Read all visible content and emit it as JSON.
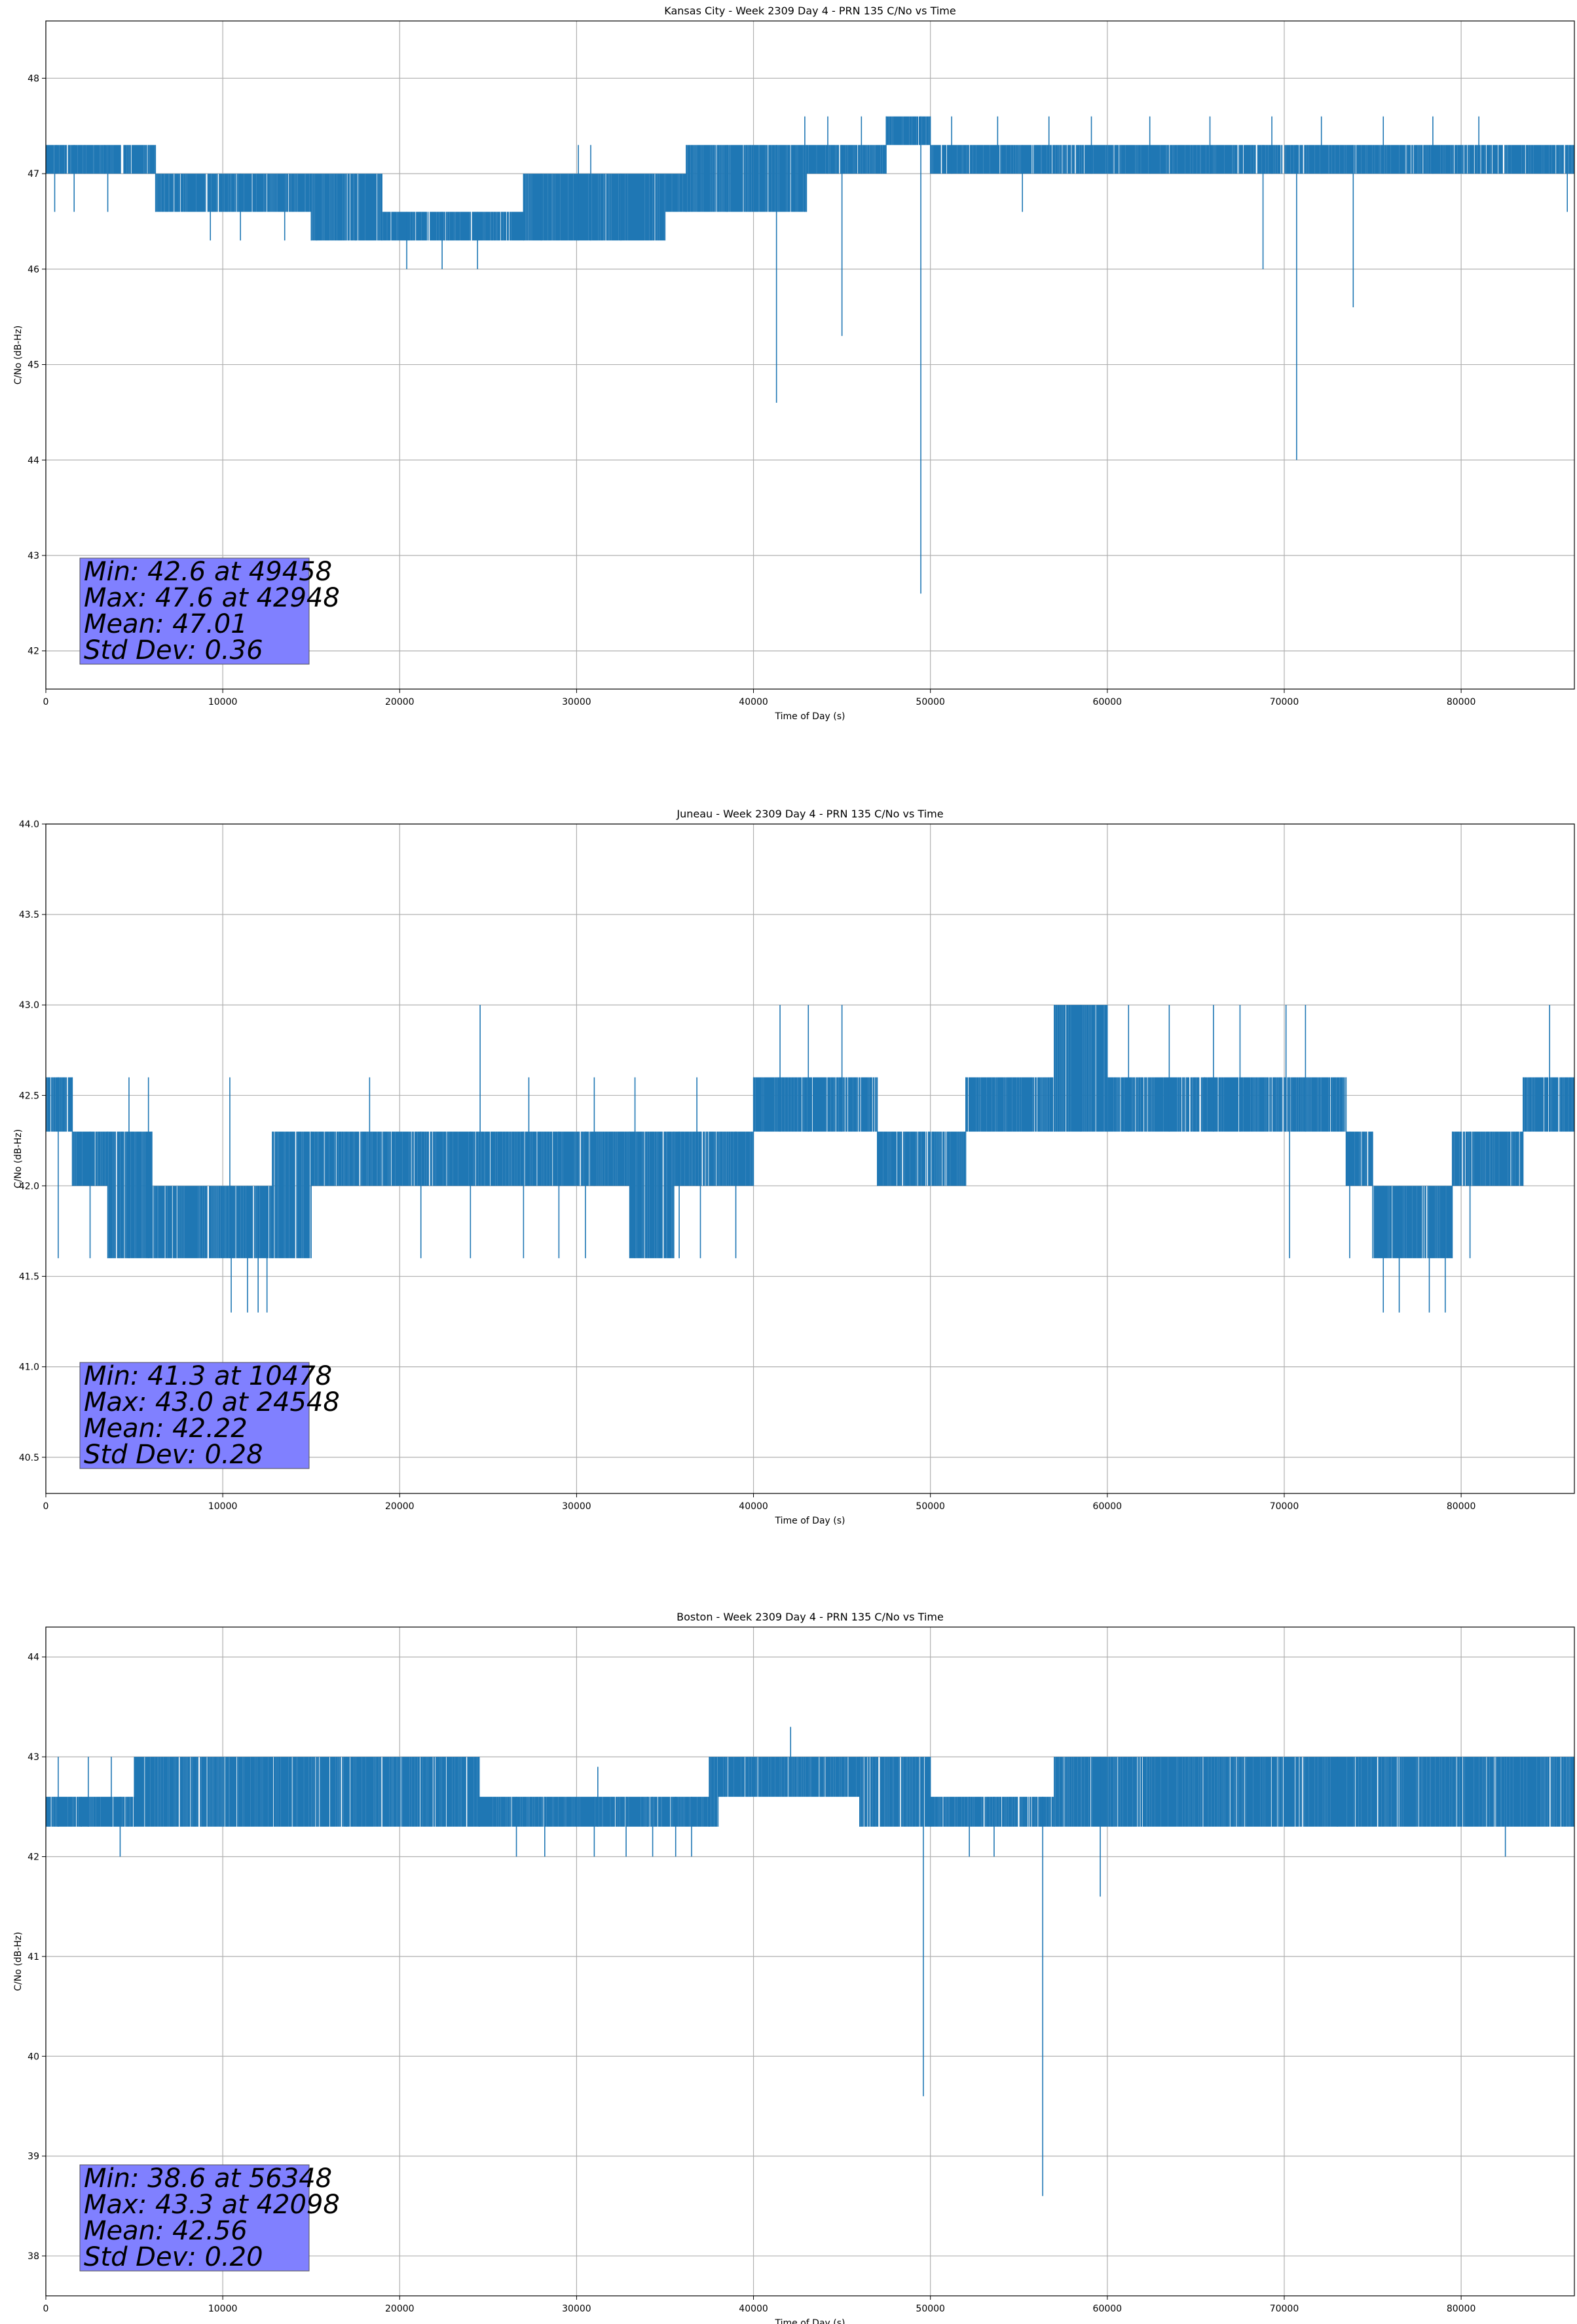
{
  "chart_data": [
    {
      "type": "line",
      "title": "Kansas City - Week 2309 Day 4 - PRN 135 C/No vs Time",
      "xlabel": "Time of Day (s)",
      "ylabel": "C/No (dB-Hz)",
      "xlim": [
        0,
        86400
      ],
      "ylim": [
        41.6,
        48.6
      ],
      "xticks": [
        0,
        10000,
        20000,
        30000,
        40000,
        50000,
        60000,
        70000,
        80000
      ],
      "xtick_labels": [
        "0",
        "10000",
        "20000",
        "30000",
        "40000",
        "50000",
        "60000",
        "70000",
        "80000"
      ],
      "yticks": [
        42,
        43,
        44,
        45,
        46,
        47,
        48
      ],
      "ytick_labels": [
        "42",
        "43",
        "44",
        "45",
        "46",
        "47",
        "48"
      ],
      "grid": true,
      "color": "#1f77b4",
      "bands": [
        {
          "x0": 0,
          "x1": 6200,
          "lo": 47.0,
          "hi": 47.3
        },
        {
          "x0": 6200,
          "x1": 11000,
          "lo": 46.6,
          "hi": 47.0
        },
        {
          "x0": 11000,
          "x1": 15000,
          "lo": 46.6,
          "hi": 47.0
        },
        {
          "x0": 15000,
          "x1": 19000,
          "lo": 46.3,
          "hi": 47.0
        },
        {
          "x0": 19000,
          "x1": 27000,
          "lo": 46.3,
          "hi": 46.6
        },
        {
          "x0": 27000,
          "x1": 35000,
          "lo": 46.3,
          "hi": 47.0
        },
        {
          "x0": 35000,
          "x1": 36200,
          "lo": 46.6,
          "hi": 47.0
        },
        {
          "x0": 36200,
          "x1": 43000,
          "lo": 46.6,
          "hi": 47.3
        },
        {
          "x0": 43000,
          "x1": 47500,
          "lo": 47.0,
          "hi": 47.3
        },
        {
          "x0": 47500,
          "x1": 50000,
          "lo": 47.3,
          "hi": 47.6
        },
        {
          "x0": 50000,
          "x1": 82000,
          "lo": 47.0,
          "hi": 47.3
        },
        {
          "x0": 82000,
          "x1": 86400,
          "lo": 47.0,
          "hi": 47.3
        }
      ],
      "upper_spikes": [
        [
          600,
          47.3
        ],
        [
          2200,
          47.3
        ],
        [
          3300,
          47.3
        ],
        [
          5800,
          47.3
        ],
        [
          9200,
          46.6
        ],
        [
          15300,
          46.6
        ],
        [
          30100,
          47.3
        ],
        [
          30800,
          47.3
        ],
        [
          38500,
          47.3
        ],
        [
          42900,
          47.6
        ],
        [
          44200,
          47.6
        ],
        [
          46100,
          47.6
        ],
        [
          51200,
          47.6
        ],
        [
          53800,
          47.6
        ],
        [
          56700,
          47.6
        ],
        [
          59100,
          47.6
        ],
        [
          62400,
          47.6
        ],
        [
          65800,
          47.6
        ],
        [
          69300,
          47.6
        ],
        [
          72100,
          47.6
        ],
        [
          75600,
          47.6
        ],
        [
          78400,
          47.6
        ],
        [
          81000,
          47.6
        ]
      ],
      "lower_spikes": [
        [
          500,
          46.6
        ],
        [
          1600,
          46.6
        ],
        [
          3500,
          46.6
        ],
        [
          9300,
          46.3
        ],
        [
          11000,
          46.3
        ],
        [
          13500,
          46.3
        ],
        [
          17500,
          46.3
        ],
        [
          20400,
          46.0
        ],
        [
          22400,
          46.0
        ],
        [
          24400,
          46.0
        ],
        [
          28000,
          46.3
        ],
        [
          32500,
          46.3
        ],
        [
          41300,
          44.6
        ],
        [
          45000,
          45.3
        ],
        [
          49458,
          42.6
        ],
        [
          55200,
          46.6
        ],
        [
          68800,
          46.0
        ],
        [
          70700,
          44.0
        ],
        [
          73900,
          45.6
        ],
        [
          86000,
          46.6
        ]
      ],
      "stats": [
        "Min: 42.6 at 49458",
        "Max: 47.6 at 42948",
        "Mean: 47.01",
        "Std Dev: 0.36"
      ]
    },
    {
      "type": "line",
      "title": "Juneau - Week 2309 Day 4 - PRN 135 C/No vs Time",
      "xlabel": "Time of Day (s)",
      "ylabel": "C/No (dB-Hz)",
      "xlim": [
        0,
        86400
      ],
      "ylim": [
        40.3,
        44.0
      ],
      "xticks": [
        0,
        10000,
        20000,
        30000,
        40000,
        50000,
        60000,
        70000,
        80000
      ],
      "xtick_labels": [
        "0",
        "10000",
        "20000",
        "30000",
        "40000",
        "50000",
        "60000",
        "70000",
        "80000"
      ],
      "yticks": [
        40.5,
        41.0,
        41.5,
        42.0,
        42.5,
        43.0,
        43.5,
        44.0
      ],
      "ytick_labels": [
        "40.5",
        "41.0",
        "41.5",
        "42.0",
        "42.5",
        "43.0",
        "43.5",
        "44.0"
      ],
      "grid": true,
      "color": "#1f77b4",
      "bands": [
        {
          "x0": 0,
          "x1": 1500,
          "lo": 42.3,
          "hi": 42.6
        },
        {
          "x0": 1500,
          "x1": 3500,
          "lo": 42.0,
          "hi": 42.3
        },
        {
          "x0": 3500,
          "x1": 6000,
          "lo": 41.6,
          "hi": 42.3
        },
        {
          "x0": 6000,
          "x1": 10000,
          "lo": 41.6,
          "hi": 42.0
        },
        {
          "x0": 10000,
          "x1": 12800,
          "lo": 41.6,
          "hi": 42.0
        },
        {
          "x0": 12800,
          "x1": 15000,
          "lo": 41.6,
          "hi": 42.3
        },
        {
          "x0": 15000,
          "x1": 33000,
          "lo": 42.0,
          "hi": 42.3
        },
        {
          "x0": 33000,
          "x1": 35500,
          "lo": 41.6,
          "hi": 42.3
        },
        {
          "x0": 35500,
          "x1": 40000,
          "lo": 42.0,
          "hi": 42.3
        },
        {
          "x0": 40000,
          "x1": 47000,
          "lo": 42.3,
          "hi": 42.6
        },
        {
          "x0": 47000,
          "x1": 52000,
          "lo": 42.0,
          "hi": 42.3
        },
        {
          "x0": 52000,
          "x1": 57000,
          "lo": 42.3,
          "hi": 42.6
        },
        {
          "x0": 57000,
          "x1": 60000,
          "lo": 42.3,
          "hi": 43.0
        },
        {
          "x0": 60000,
          "x1": 65500,
          "lo": 42.3,
          "hi": 42.6
        },
        {
          "x0": 65500,
          "x1": 73500,
          "lo": 42.3,
          "hi": 42.6
        },
        {
          "x0": 73500,
          "x1": 75000,
          "lo": 42.0,
          "hi": 42.3
        },
        {
          "x0": 75000,
          "x1": 79500,
          "lo": 41.6,
          "hi": 42.0
        },
        {
          "x0": 79500,
          "x1": 83500,
          "lo": 42.0,
          "hi": 42.3
        },
        {
          "x0": 83500,
          "x1": 86400,
          "lo": 42.3,
          "hi": 42.6
        }
      ],
      "upper_spikes": [
        [
          24548,
          43.0
        ],
        [
          41500,
          43.0
        ],
        [
          43100,
          43.0
        ],
        [
          45000,
          43.0
        ],
        [
          58500,
          43.0
        ],
        [
          61200,
          43.0
        ],
        [
          63500,
          43.0
        ],
        [
          66000,
          43.0
        ],
        [
          67500,
          43.0
        ],
        [
          70100,
          43.0
        ],
        [
          71200,
          43.0
        ],
        [
          85000,
          43.0
        ],
        [
          4700,
          42.6
        ],
        [
          5800,
          42.6
        ],
        [
          10400,
          42.6
        ],
        [
          18300,
          42.6
        ],
        [
          27300,
          42.6
        ],
        [
          31000,
          42.6
        ],
        [
          33300,
          42.6
        ],
        [
          36800,
          42.6
        ]
      ],
      "lower_spikes": [
        [
          10478,
          41.3
        ],
        [
          11400,
          41.3
        ],
        [
          12000,
          41.3
        ],
        [
          12500,
          41.3
        ],
        [
          75600,
          41.3
        ],
        [
          76500,
          41.3
        ],
        [
          78200,
          41.3
        ],
        [
          79100,
          41.3
        ],
        [
          700,
          41.6
        ],
        [
          2500,
          41.6
        ],
        [
          21200,
          41.6
        ],
        [
          24000,
          41.6
        ],
        [
          27000,
          41.6
        ],
        [
          29000,
          41.6
        ],
        [
          30500,
          41.6
        ],
        [
          35800,
          41.6
        ],
        [
          37000,
          41.6
        ],
        [
          39000,
          41.6
        ],
        [
          70300,
          41.6
        ],
        [
          73700,
          41.6
        ],
        [
          80500,
          41.6
        ]
      ],
      "stats": [
        "Min: 41.3 at 10478",
        "Max: 43.0 at 24548",
        "Mean: 42.22",
        "Std Dev: 0.28"
      ]
    },
    {
      "type": "line",
      "title": "Boston - Week 2309 Day 4 - PRN 135 C/No vs Time",
      "xlabel": "Time of Day (s)",
      "ylabel": "C/No (dB-Hz)",
      "xlim": [
        0,
        86400
      ],
      "ylim": [
        37.6,
        44.3
      ],
      "xticks": [
        0,
        10000,
        20000,
        30000,
        40000,
        50000,
        60000,
        70000,
        80000
      ],
      "xtick_labels": [
        "0",
        "10000",
        "20000",
        "30000",
        "40000",
        "50000",
        "60000",
        "70000",
        "80000"
      ],
      "yticks": [
        38,
        39,
        40,
        41,
        42,
        43,
        44
      ],
      "ytick_labels": [
        "38",
        "39",
        "40",
        "41",
        "42",
        "43",
        "44"
      ],
      "grid": true,
      "color": "#1f77b4",
      "bands": [
        {
          "x0": 0,
          "x1": 2000,
          "lo": 42.3,
          "hi": 42.6
        },
        {
          "x0": 2000,
          "x1": 5000,
          "lo": 42.3,
          "hi": 42.6
        },
        {
          "x0": 5000,
          "x1": 10000,
          "lo": 42.3,
          "hi": 43.0
        },
        {
          "x0": 10000,
          "x1": 17000,
          "lo": 42.3,
          "hi": 43.0
        },
        {
          "x0": 17000,
          "x1": 24500,
          "lo": 42.3,
          "hi": 43.0
        },
        {
          "x0": 24500,
          "x1": 34000,
          "lo": 42.3,
          "hi": 42.6
        },
        {
          "x0": 34000,
          "x1": 37500,
          "lo": 42.3,
          "hi": 42.6
        },
        {
          "x0": 37500,
          "x1": 38000,
          "lo": 42.3,
          "hi": 43.0
        },
        {
          "x0": 38000,
          "x1": 46000,
          "lo": 42.6,
          "hi": 43.0
        },
        {
          "x0": 46000,
          "x1": 50000,
          "lo": 42.3,
          "hi": 43.0
        },
        {
          "x0": 50000,
          "x1": 57000,
          "lo": 42.3,
          "hi": 42.6
        },
        {
          "x0": 57000,
          "x1": 73000,
          "lo": 42.3,
          "hi": 43.0
        },
        {
          "x0": 73000,
          "x1": 86400,
          "lo": 42.3,
          "hi": 43.0
        }
      ],
      "upper_spikes": [
        [
          42098,
          43.3
        ],
        [
          31200,
          42.9
        ],
        [
          700,
          43.0
        ],
        [
          2400,
          43.0
        ],
        [
          3700,
          43.0
        ]
      ],
      "lower_spikes": [
        [
          4200,
          42.0
        ],
        [
          26600,
          42.0
        ],
        [
          28200,
          42.0
        ],
        [
          31000,
          42.0
        ],
        [
          32800,
          42.0
        ],
        [
          34300,
          42.0
        ],
        [
          35600,
          42.0
        ],
        [
          36500,
          42.0
        ],
        [
          49600,
          39.6
        ],
        [
          52200,
          42.0
        ],
        [
          53600,
          42.0
        ],
        [
          56348,
          38.6
        ],
        [
          59600,
          41.6
        ],
        [
          82500,
          42.0
        ]
      ],
      "stats": [
        "Min: 38.6 at 56348",
        "Max: 43.3 at 42098",
        "Mean: 42.56",
        "Std Dev: 0.20"
      ]
    }
  ]
}
